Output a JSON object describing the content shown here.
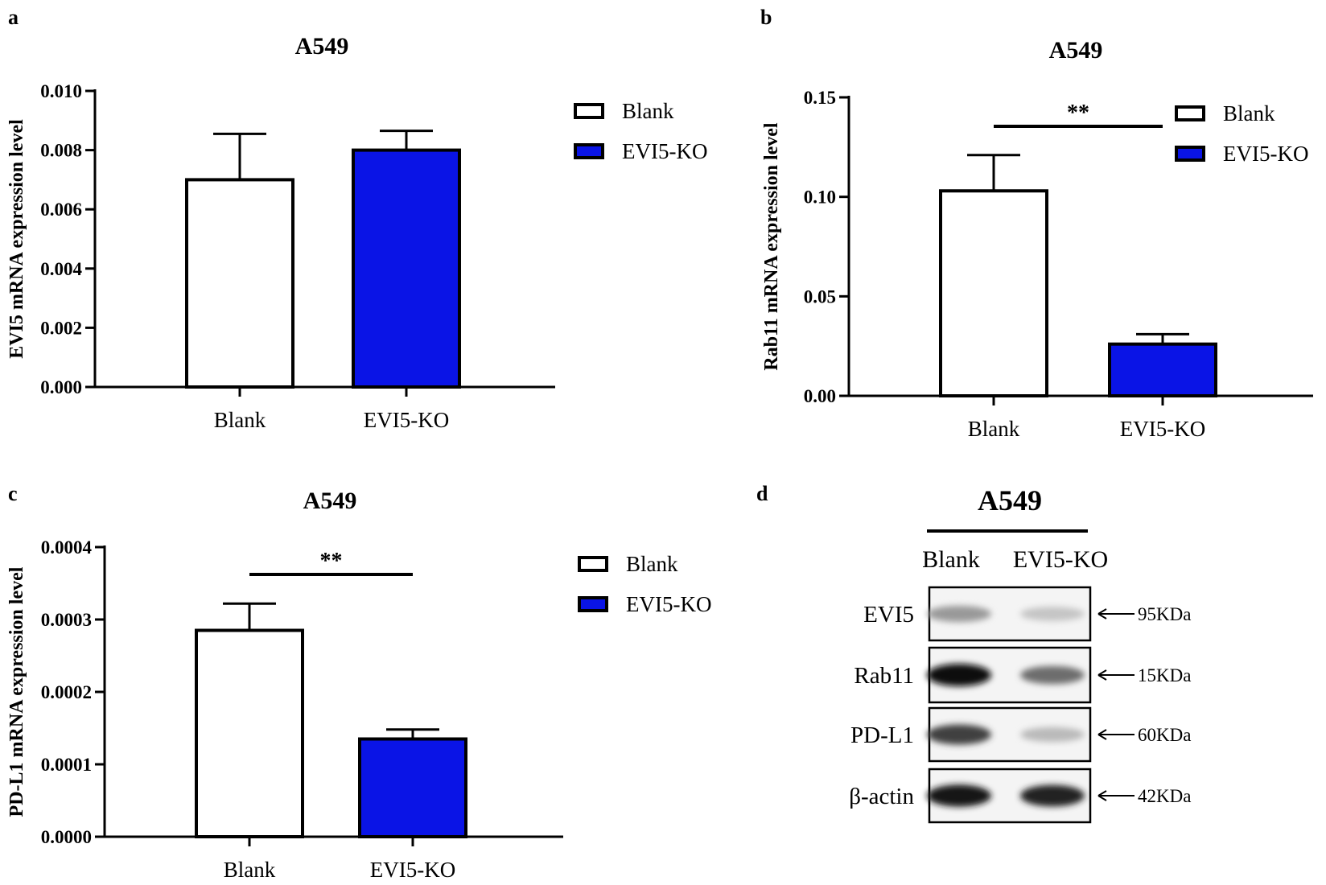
{
  "panels": [
    {
      "letter": "a",
      "chart_data": {
        "type": "bar",
        "title": "A549",
        "categories": [
          "Blank",
          "EVI5-KO"
        ],
        "values": [
          0.007,
          0.008
        ],
        "errors": [
          0.00155,
          0.00065
        ],
        "ylabel": "EVI5 mRNA expression level",
        "ylim": [
          0,
          0.01
        ],
        "yticks": [
          "0.000",
          "0.002",
          "0.004",
          "0.006",
          "0.008",
          "0.010"
        ],
        "significance": "",
        "legend": [
          {
            "label": "Blank",
            "fill": "#ffffff"
          },
          {
            "label": "EVI5-KO",
            "fill": "#0a14e6"
          }
        ],
        "colors": [
          "#ffffff",
          "#0a14e6"
        ]
      }
    },
    {
      "letter": "b",
      "chart_data": {
        "type": "bar",
        "title": "A549",
        "categories": [
          "Blank",
          "EVI5-KO"
        ],
        "values": [
          0.103,
          0.026
        ],
        "errors": [
          0.018,
          0.005
        ],
        "ylabel": "Rab11 mRNA expression level",
        "ylim": [
          0,
          0.15
        ],
        "yticks": [
          "0.00",
          "0.05",
          "0.10",
          "0.15"
        ],
        "significance": "**",
        "legend": [
          {
            "label": "Blank",
            "fill": "#ffffff"
          },
          {
            "label": "EVI5-KO",
            "fill": "#0a14e6"
          }
        ],
        "colors": [
          "#ffffff",
          "#0a14e6"
        ]
      }
    },
    {
      "letter": "c",
      "chart_data": {
        "type": "bar",
        "title": "A549",
        "categories": [
          "Blank",
          "EVI5-KO"
        ],
        "values": [
          0.000285,
          0.000135
        ],
        "errors": [
          3.7e-05,
          1.3e-05
        ],
        "ylabel": "PD-L1 mRNA expression level",
        "ylim": [
          0,
          0.0004
        ],
        "yticks": [
          "0.0000",
          "0.0001",
          "0.0002",
          "0.0003",
          "0.0004"
        ],
        "significance": "**",
        "legend": [
          {
            "label": "Blank",
            "fill": "#ffffff"
          },
          {
            "label": "EVI5-KO",
            "fill": "#0a14e6"
          }
        ],
        "colors": [
          "#ffffff",
          "#0a14e6"
        ]
      }
    }
  ],
  "blot": {
    "letter": "d",
    "title": "A549",
    "lanes": [
      "Blank",
      "EVI5-KO"
    ],
    "rows": [
      {
        "label": "EVI5",
        "size": "95KDa",
        "intensity": [
          0.35,
          0.15
        ]
      },
      {
        "label": "Rab11",
        "size": "15KDa",
        "intensity": [
          1.0,
          0.55
        ]
      },
      {
        "label": "PD-L1",
        "size": "60KDa",
        "intensity": [
          0.75,
          0.2
        ]
      },
      {
        "label": "β-actin",
        "size": "42KDa",
        "intensity": [
          0.95,
          0.9
        ]
      }
    ]
  }
}
